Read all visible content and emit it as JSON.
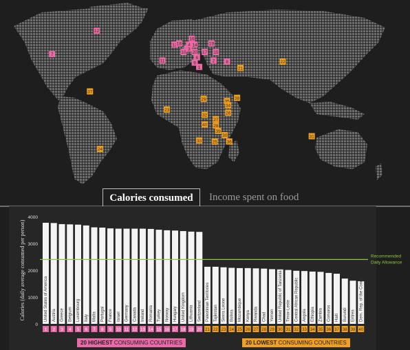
{
  "tabs": {
    "active": "Calories consumed",
    "inactive": "Income spent on food"
  },
  "legend": {
    "high": {
      "strong": "20 HIGHEST",
      "rest": "CONSUMING COUNTRIES"
    },
    "low": {
      "strong": "20 LOWEST",
      "rest": "CONSUMING COUNTRIES"
    }
  },
  "colors": {
    "high": "#ea6aa8",
    "low": "#f0a020",
    "allowance": "#8dc63f",
    "bar": "#f4f4f4"
  },
  "map_markers": [
    {
      "label": "16",
      "group": "high",
      "lon": 10.5,
      "lat": 60.5
    },
    {
      "label": "12",
      "group": "high",
      "lon": -75,
      "lat": 68
    },
    {
      "label": "7",
      "group": "high",
      "lon": -115,
      "lat": 46
    },
    {
      "label": "13",
      "group": "high",
      "lon": -5,
      "lat": 55
    },
    {
      "label": "18",
      "group": "high",
      "lon": -1,
      "lat": 56
    },
    {
      "label": "4",
      "group": "high",
      "lon": 8,
      "lat": 55
    },
    {
      "label": "14",
      "group": "high",
      "lon": 13,
      "lat": 55
    },
    {
      "label": "19",
      "group": "high",
      "lon": 28,
      "lat": 56
    },
    {
      "label": "5",
      "group": "high",
      "lon": 6,
      "lat": 51
    },
    {
      "label": "3",
      "group": "high",
      "lon": 8,
      "lat": 51
    },
    {
      "label": "10",
      "group": "high",
      "lon": 3,
      "lat": 48
    },
    {
      "label": "20",
      "group": "high",
      "lon": 13,
      "lat": 48
    },
    {
      "label": "17",
      "group": "high",
      "lon": 22,
      "lat": 48
    },
    {
      "label": "15",
      "group": "high",
      "lon": 32,
      "lat": 48
    },
    {
      "label": "6",
      "group": "high",
      "lon": 15,
      "lat": 43
    },
    {
      "label": "11",
      "group": "high",
      "lon": -16,
      "lat": 40
    },
    {
      "label": "9",
      "group": "high",
      "lon": 13,
      "lat": 38
    },
    {
      "label": "2",
      "group": "high",
      "lon": 30,
      "lat": 40
    },
    {
      "label": "8",
      "group": "high",
      "lon": 42,
      "lat": 39
    },
    {
      "label": "1",
      "group": "high",
      "lon": 17,
      "lat": 34
    },
    {
      "label": "21",
      "group": "low",
      "lon": 54,
      "lat": 33
    },
    {
      "label": "22",
      "group": "low",
      "lon": 92,
      "lat": 39
    },
    {
      "label": "37",
      "group": "low",
      "lon": -81,
      "lat": 11
    },
    {
      "label": "29",
      "group": "low",
      "lon": 21,
      "lat": 4
    },
    {
      "label": "35",
      "group": "low",
      "lon": 42,
      "lat": 2
    },
    {
      "label": "38",
      "group": "low",
      "lon": 51,
      "lat": 5
    },
    {
      "label": "34",
      "group": "low",
      "lon": 43,
      "lat": -2
    },
    {
      "label": "23",
      "group": "low",
      "lon": -12,
      "lat": -6
    },
    {
      "label": "32",
      "group": "low",
      "lon": 22,
      "lat": -11
    },
    {
      "label": "26",
      "group": "low",
      "lon": 43,
      "lat": -9
    },
    {
      "label": "27",
      "group": "low",
      "lon": 32,
      "lat": -15
    },
    {
      "label": "40",
      "group": "low",
      "lon": 22,
      "lat": -20
    },
    {
      "label": "28",
      "group": "low",
      "lon": 32,
      "lat": -21
    },
    {
      "label": "39",
      "group": "low",
      "lon": 34,
      "lat": -26
    },
    {
      "label": "30",
      "group": "low",
      "lon": 40,
      "lat": -30
    },
    {
      "label": "33",
      "group": "low",
      "lon": 17,
      "lat": -35
    },
    {
      "label": "25",
      "group": "low",
      "lon": 31,
      "lat": -36
    },
    {
      "label": "36",
      "group": "low",
      "lon": 44,
      "lat": -36
    },
    {
      "label": "31",
      "group": "low",
      "lon": 118,
      "lat": -31
    },
    {
      "label": "24",
      "group": "low",
      "lon": -72,
      "lat": -43
    }
  ],
  "chart_data": {
    "type": "bar",
    "ylabel": "Calories (daily average consumed per person)",
    "ylim": [
      0,
      4000
    ],
    "yticks": [
      0,
      1000,
      2000,
      3000,
      4000
    ],
    "reference": {
      "value": 2400,
      "label": [
        "Recommended",
        "Daily Allowance"
      ]
    },
    "categories": [
      "United States of America",
      "Austria",
      "Greece",
      "Belgium",
      "Luxembourg",
      "Italy",
      "Malta",
      "Portugal",
      "France",
      "Israel",
      "Germany",
      "Canada",
      "Ireland",
      "Romania",
      "Turkey",
      "Norway",
      "Hungary",
      "United Kingdom",
      "Lithuania",
      "Switzerland",
      "Palestinian Territories",
      "Tajikistan",
      "Sierra Leone",
      "Bolivia",
      "Mozambique",
      "Kenya",
      "Rwanda",
      "Chad",
      "Yemen",
      "United Republic of Tanzania",
      "Timor-Leste",
      "Central African Republic",
      "Angola",
      "Ethiopia",
      "Zambia",
      "Comoros",
      "Haiti",
      "Burundi",
      "Eritrea",
      "Dem. Rep. of the Congo"
    ],
    "ranks": [
      "1",
      "2",
      "3",
      "4",
      "5",
      "6",
      "7",
      "8",
      "9",
      "10",
      "11",
      "12",
      "13",
      "14",
      "15",
      "16",
      "17",
      "18",
      "19",
      "20",
      "21",
      "22",
      "23",
      "24",
      "25",
      "26",
      "27",
      "28",
      "29",
      "30",
      "31",
      "32",
      "33",
      "34",
      "35",
      "36",
      "37",
      "38",
      "39",
      "40"
    ],
    "values": [
      3770,
      3760,
      3720,
      3710,
      3700,
      3670,
      3600,
      3590,
      3560,
      3550,
      3550,
      3550,
      3550,
      3540,
      3510,
      3490,
      3480,
      3460,
      3440,
      3430,
      2130,
      2130,
      2110,
      2090,
      2080,
      2080,
      2070,
      2060,
      2040,
      2030,
      2010,
      1980,
      1970,
      1950,
      1940,
      1900,
      1870,
      1690,
      1610,
      1590
    ],
    "groups": [
      "high",
      "high",
      "high",
      "high",
      "high",
      "high",
      "high",
      "high",
      "high",
      "high",
      "high",
      "high",
      "high",
      "high",
      "high",
      "high",
      "high",
      "high",
      "high",
      "high",
      "low",
      "low",
      "low",
      "low",
      "low",
      "low",
      "low",
      "low",
      "low",
      "low",
      "low",
      "low",
      "low",
      "low",
      "low",
      "low",
      "low",
      "low",
      "low",
      "low"
    ]
  }
}
